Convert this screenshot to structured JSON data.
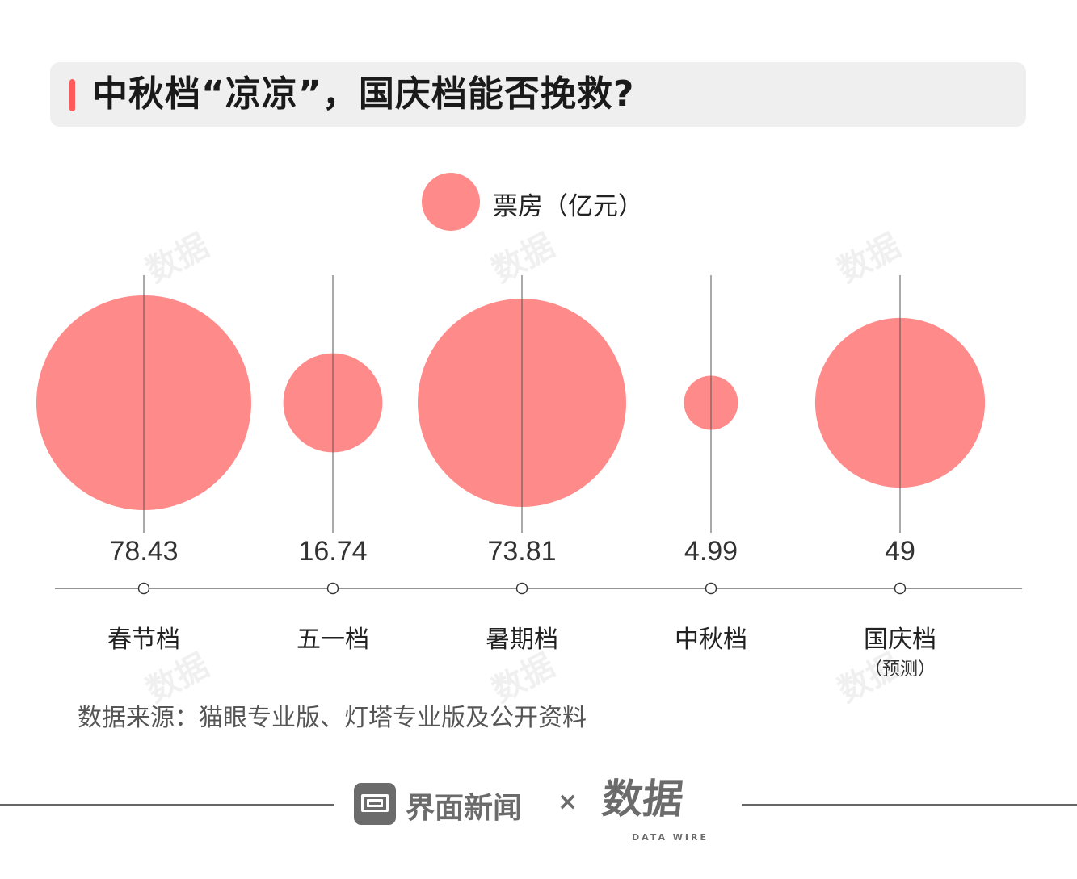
{
  "title": "中秋档“凉凉”，国庆档能否挽救?",
  "legend": {
    "label": "票房（亿元）",
    "color": "#ff8a8a"
  },
  "source": "数据来源：猫眼专业版、灯塔专业版及公开资料",
  "footer": {
    "brand": "界面新闻",
    "separator": "×",
    "partner_mark": "数据",
    "partner_sub": "DATA WIRE"
  },
  "watermark": {
    "text": "数据",
    "sub": "DATA WIRE"
  },
  "chart_data": {
    "type": "bubble",
    "series_name": "票房（亿元）",
    "categories": [
      "春节档",
      "五一档",
      "暑期档",
      "中秋档",
      "国庆档"
    ],
    "category_notes": [
      "",
      "",
      "",
      "",
      "（预测）"
    ],
    "values": [
      78.43,
      16.74,
      73.81,
      4.99,
      49
    ],
    "value_labels": [
      "78.43",
      "16.74",
      "73.81",
      "4.99",
      "49"
    ],
    "bubble_color": "#ff8a8a",
    "axis_color": "#555555",
    "grid": false
  }
}
